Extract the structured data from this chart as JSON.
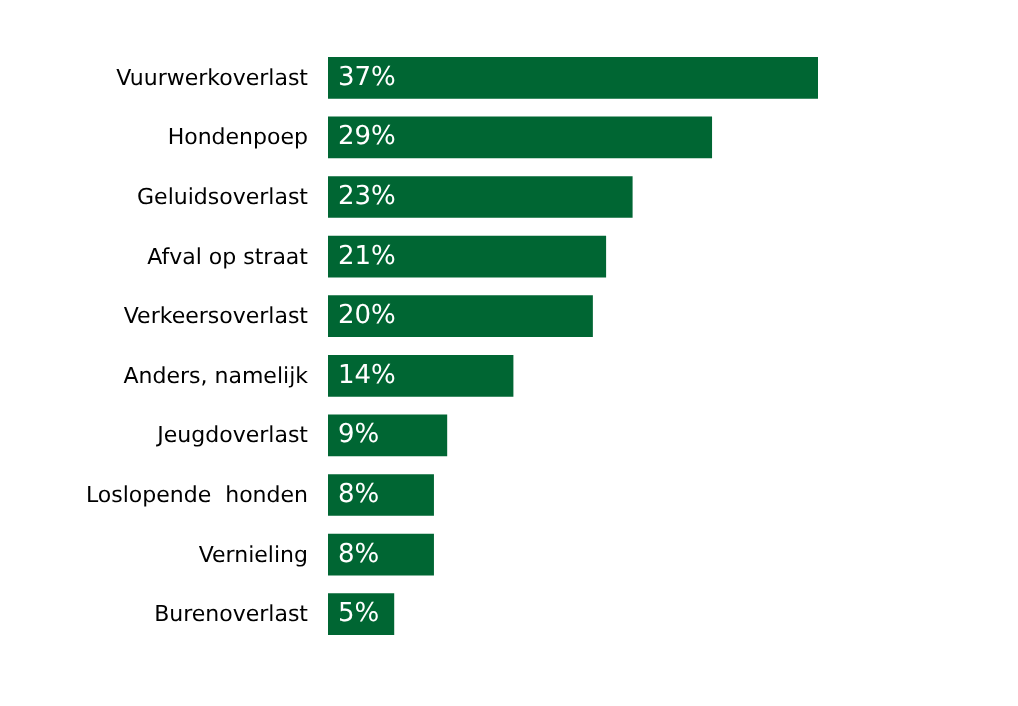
{
  "chart_data": {
    "type": "bar",
    "orientation": "horizontal",
    "categories": [
      "Vuurwerkoverlast",
      "Hondenpoep",
      "Geluidsoverlast",
      "Afval op straat",
      "Verkeersoverlast",
      "Anders, namelijk",
      "Jeugdoverlast",
      "Loslopende  honden",
      "Vernieling",
      "Burenoverlast"
    ],
    "values": [
      37,
      29,
      23,
      21,
      20,
      14,
      9,
      8,
      8,
      5
    ],
    "color": "#006633",
    "value_labels": [
      "37%",
      "29%",
      "23%",
      "21%",
      "20%",
      "14%",
      "9%",
      "8%",
      "8%",
      "5%"
    ],
    "tick_labels": "y"
  }
}
